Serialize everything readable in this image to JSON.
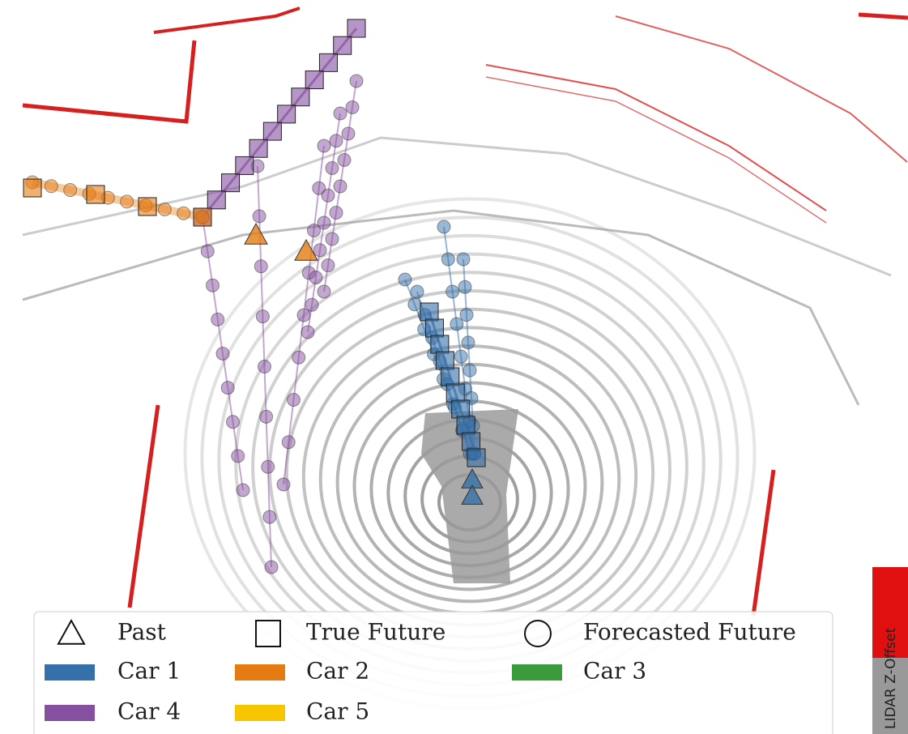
{
  "legend": {
    "markers": [
      "Past",
      "True Future",
      "Forecasted Future"
    ],
    "cars": [
      {
        "name": "Car 1",
        "color": "#3570a8"
      },
      {
        "name": "Car 2",
        "color": "#e57c12"
      },
      {
        "name": "Car 3",
        "color": "#3b9b3b"
      },
      {
        "name": "Car 4",
        "color": "#8650a0"
      },
      {
        "name": "Car 5",
        "color": "#f7c600"
      }
    ]
  },
  "colorbar": {
    "label": "LIDAR Z-Offset"
  }
}
